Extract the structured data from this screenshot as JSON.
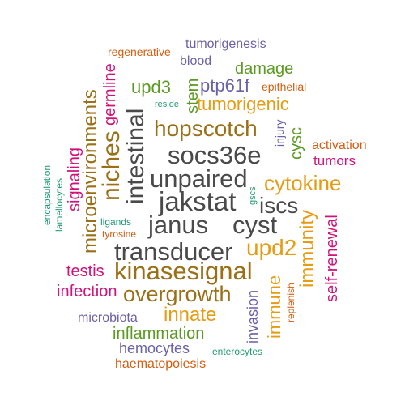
{
  "colors": {
    "gray": "#4a4a4a",
    "brown": "#9a6f16",
    "orange": "#e69c12",
    "purple": "#6b61a6",
    "green": "#5b9a22",
    "pink": "#d1127a",
    "red": "#d55e10",
    "teal": "#1f9a74"
  },
  "words": [
    {
      "text": "tumorigenesis",
      "color": "purple"
    },
    {
      "text": "regenerative",
      "color": "red"
    },
    {
      "text": "blood",
      "color": "purple"
    },
    {
      "text": "damage",
      "color": "green"
    },
    {
      "text": "upd3",
      "color": "green"
    },
    {
      "text": "ptp61f",
      "color": "purple"
    },
    {
      "text": "epithelial",
      "color": "red"
    },
    {
      "text": "reside",
      "color": "teal"
    },
    {
      "text": "stem",
      "color": "green"
    },
    {
      "text": "tumorigenic",
      "color": "orange"
    },
    {
      "text": "germline",
      "color": "pink"
    },
    {
      "text": "microenvironments",
      "color": "brown"
    },
    {
      "text": "niches",
      "color": "brown"
    },
    {
      "text": "intestinal",
      "color": "gray"
    },
    {
      "text": "hopscotch",
      "color": "brown"
    },
    {
      "text": "socs36e",
      "color": "gray"
    },
    {
      "text": "injury",
      "color": "purple"
    },
    {
      "text": "cysc",
      "color": "green"
    },
    {
      "text": "activation",
      "color": "red"
    },
    {
      "text": "tumors",
      "color": "pink"
    },
    {
      "text": "unpaired",
      "color": "gray"
    },
    {
      "text": "cytokine",
      "color": "orange"
    },
    {
      "text": "encapsulation",
      "color": "teal"
    },
    {
      "text": "lamellocytes",
      "color": "teal"
    },
    {
      "text": "signaling",
      "color": "pink"
    },
    {
      "text": "jakstat",
      "color": "gray"
    },
    {
      "text": "gscs",
      "color": "teal"
    },
    {
      "text": "iscs",
      "color": "gray"
    },
    {
      "text": "ligands",
      "color": "teal"
    },
    {
      "text": "tyrosine",
      "color": "red"
    },
    {
      "text": "janus",
      "color": "gray"
    },
    {
      "text": "cyst",
      "color": "gray"
    },
    {
      "text": "immunity",
      "color": "orange"
    },
    {
      "text": "self-renewal",
      "color": "pink"
    },
    {
      "text": "transducer",
      "color": "gray"
    },
    {
      "text": "upd2",
      "color": "orange"
    },
    {
      "text": "testis",
      "color": "pink"
    },
    {
      "text": "kinasesignal",
      "color": "brown"
    },
    {
      "text": "immune",
      "color": "orange"
    },
    {
      "text": "infection",
      "color": "pink"
    },
    {
      "text": "overgrowth",
      "color": "brown"
    },
    {
      "text": "replenish",
      "color": "red"
    },
    {
      "text": "invasion",
      "color": "purple"
    },
    {
      "text": "microbiota",
      "color": "purple"
    },
    {
      "text": "innate",
      "color": "orange"
    },
    {
      "text": "inflammation",
      "color": "green"
    },
    {
      "text": "hemocytes",
      "color": "purple"
    },
    {
      "text": "enterocytes",
      "color": "teal"
    },
    {
      "text": "haematopoiesis",
      "color": "red"
    }
  ]
}
